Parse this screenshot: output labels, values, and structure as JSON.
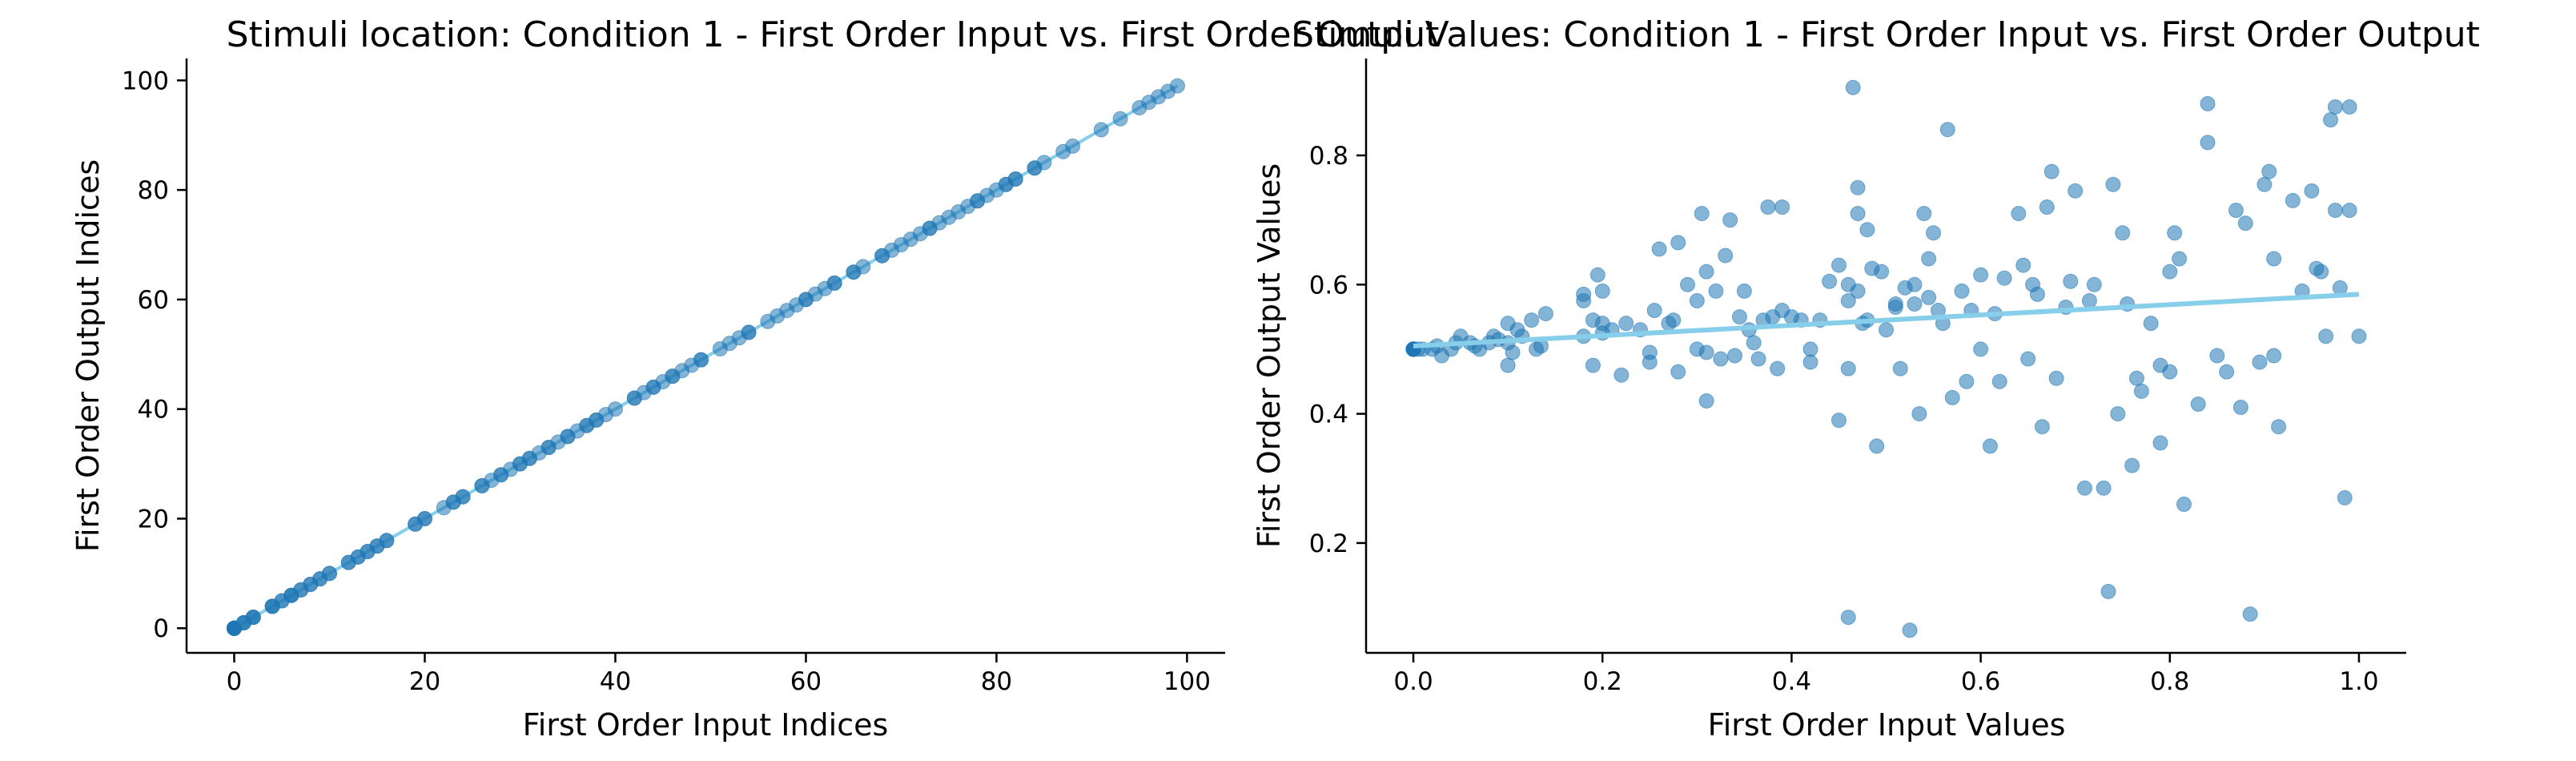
{
  "colors": {
    "point": "#1f77b4",
    "fit_line": "#87ceeb",
    "axis": "#000000"
  },
  "chart_data": [
    {
      "type": "scatter",
      "title": "Stimuli location: Condition 1 - First Order Input vs. First Order Output",
      "xlabel": "First Order Input Indices",
      "ylabel": "First Order Output Indices",
      "xlim": [
        -5,
        104
      ],
      "ylim": [
        -4.5,
        104
      ],
      "xticks": [
        "0",
        "20",
        "40",
        "60",
        "80",
        "100"
      ],
      "yticks": [
        "0",
        "20",
        "40",
        "60",
        "80",
        "100"
      ],
      "grid": false,
      "x": [
        0,
        0,
        0,
        0,
        0,
        0,
        0,
        0,
        0,
        0,
        0,
        0,
        1,
        1,
        1,
        2,
        2,
        2,
        4,
        4,
        4,
        5,
        5,
        6,
        6,
        6,
        7,
        7,
        8,
        8,
        9,
        9,
        10,
        10,
        12,
        12,
        13,
        13,
        14,
        14,
        15,
        15,
        16,
        16,
        19,
        19,
        20,
        20,
        22,
        23,
        23,
        24,
        24,
        26,
        26,
        27,
        28,
        28,
        29,
        30,
        30,
        31,
        31,
        32,
        33,
        33,
        34,
        35,
        35,
        36,
        37,
        37,
        38,
        38,
        39,
        40,
        42,
        42,
        43,
        44,
        44,
        45,
        46,
        46,
        47,
        48,
        49,
        49,
        51,
        52,
        53,
        54,
        54,
        56,
        57,
        58,
        59,
        60,
        60,
        61,
        62,
        63,
        63,
        65,
        65,
        66,
        68,
        68,
        69,
        70,
        71,
        72,
        73,
        73,
        74,
        75,
        76,
        77,
        78,
        78,
        79,
        80,
        81,
        81,
        82,
        82,
        84,
        84,
        85,
        87,
        88,
        91,
        93,
        95,
        96,
        97,
        98,
        99
      ],
      "y": [
        0,
        0,
        0,
        0,
        0,
        0,
        0,
        0,
        0,
        0,
        0,
        0,
        1,
        1,
        1,
        2,
        2,
        2,
        4,
        4,
        4,
        5,
        5,
        6,
        6,
        6,
        7,
        7,
        8,
        8,
        9,
        9,
        10,
        10,
        12,
        12,
        13,
        13,
        14,
        14,
        15,
        15,
        16,
        16,
        19,
        19,
        20,
        20,
        22,
        23,
        23,
        24,
        24,
        26,
        26,
        27,
        28,
        28,
        29,
        30,
        30,
        31,
        31,
        32,
        33,
        33,
        34,
        35,
        35,
        36,
        37,
        37,
        38,
        38,
        39,
        40,
        42,
        42,
        43,
        44,
        44,
        45,
        46,
        46,
        47,
        48,
        49,
        49,
        51,
        52,
        53,
        54,
        54,
        56,
        57,
        58,
        59,
        60,
        60,
        61,
        62,
        63,
        63,
        65,
        65,
        66,
        68,
        68,
        69,
        70,
        71,
        72,
        73,
        73,
        74,
        75,
        76,
        77,
        78,
        78,
        79,
        80,
        81,
        81,
        82,
        82,
        84,
        84,
        85,
        87,
        88,
        91,
        93,
        95,
        96,
        97,
        98,
        99
      ],
      "fit_line": {
        "x": [
          0,
          99
        ],
        "y": [
          0,
          99
        ]
      }
    },
    {
      "type": "scatter",
      "title": "Stimuli Values: Condition 1 - First Order Input vs. First Order Output",
      "xlabel": "First Order Input Values",
      "ylabel": "First Order Output Values",
      "xlim": [
        -0.05,
        1.05
      ],
      "ylim": [
        0.03,
        0.95
      ],
      "xticks": [
        "0.0",
        "0.2",
        "0.4",
        "0.6",
        "0.8",
        "1.0"
      ],
      "yticks": [
        "0.2",
        "0.4",
        "0.6",
        "0.8"
      ],
      "grid": false,
      "points": [
        [
          0,
          0.5
        ],
        [
          0,
          0.5
        ],
        [
          0,
          0.5
        ],
        [
          0,
          0.5
        ],
        [
          0,
          0.5
        ],
        [
          0,
          0.5
        ],
        [
          0,
          0.5
        ],
        [
          0,
          0.5
        ],
        [
          0.005,
          0.5
        ],
        [
          0.01,
          0.5
        ],
        [
          0.02,
          0.5
        ],
        [
          0.025,
          0.505
        ],
        [
          0.03,
          0.49
        ],
        [
          0.04,
          0.5
        ],
        [
          0.045,
          0.51
        ],
        [
          0.05,
          0.52
        ],
        [
          0.06,
          0.51
        ],
        [
          0.065,
          0.505
        ],
        [
          0.07,
          0.5
        ],
        [
          0.08,
          0.51
        ],
        [
          0.085,
          0.52
        ],
        [
          0.09,
          0.515
        ],
        [
          0.1,
          0.54
        ],
        [
          0.1,
          0.51
        ],
        [
          0.105,
          0.495
        ],
        [
          0.1,
          0.475
        ],
        [
          0.11,
          0.53
        ],
        [
          0.115,
          0.52
        ],
        [
          0.125,
          0.545
        ],
        [
          0.13,
          0.5
        ],
        [
          0.135,
          0.505
        ],
        [
          0.14,
          0.555
        ],
        [
          0.18,
          0.585
        ],
        [
          0.18,
          0.575
        ],
        [
          0.18,
          0.52
        ],
        [
          0.19,
          0.545
        ],
        [
          0.19,
          0.475
        ],
        [
          0.195,
          0.615
        ],
        [
          0.2,
          0.59
        ],
        [
          0.2,
          0.54
        ],
        [
          0.2,
          0.525
        ],
        [
          0.21,
          0.53
        ],
        [
          0.22,
          0.46
        ],
        [
          0.225,
          0.54
        ],
        [
          0.24,
          0.53
        ],
        [
          0.25,
          0.495
        ],
        [
          0.25,
          0.48
        ],
        [
          0.255,
          0.56
        ],
        [
          0.26,
          0.655
        ],
        [
          0.27,
          0.54
        ],
        [
          0.275,
          0.545
        ],
        [
          0.28,
          0.665
        ],
        [
          0.28,
          0.465
        ],
        [
          0.29,
          0.6
        ],
        [
          0.3,
          0.575
        ],
        [
          0.3,
          0.5
        ],
        [
          0.305,
          0.71
        ],
        [
          0.31,
          0.62
        ],
        [
          0.31,
          0.495
        ],
        [
          0.31,
          0.42
        ],
        [
          0.32,
          0.59
        ],
        [
          0.325,
          0.485
        ],
        [
          0.33,
          0.645
        ],
        [
          0.335,
          0.7
        ],
        [
          0.34,
          0.49
        ],
        [
          0.345,
          0.55
        ],
        [
          0.35,
          0.59
        ],
        [
          0.355,
          0.53
        ],
        [
          0.36,
          0.51
        ],
        [
          0.365,
          0.485
        ],
        [
          0.37,
          0.545
        ],
        [
          0.375,
          0.72
        ],
        [
          0.38,
          0.55
        ],
        [
          0.385,
          0.47
        ],
        [
          0.39,
          0.56
        ],
        [
          0.39,
          0.72
        ],
        [
          0.4,
          0.55
        ],
        [
          0.41,
          0.545
        ],
        [
          0.42,
          0.5
        ],
        [
          0.42,
          0.48
        ],
        [
          0.43,
          0.545
        ],
        [
          0.44,
          0.605
        ],
        [
          0.45,
          0.63
        ],
        [
          0.45,
          0.39
        ],
        [
          0.46,
          0.6
        ],
        [
          0.46,
          0.575
        ],
        [
          0.46,
          0.47
        ],
        [
          0.47,
          0.59
        ],
        [
          0.47,
          0.75
        ],
        [
          0.47,
          0.71
        ],
        [
          0.475,
          0.54
        ],
        [
          0.48,
          0.685
        ],
        [
          0.48,
          0.545
        ],
        [
          0.485,
          0.625
        ],
        [
          0.49,
          0.35
        ],
        [
          0.495,
          0.62
        ],
        [
          0.5,
          0.53
        ],
        [
          0.51,
          0.565
        ],
        [
          0.51,
          0.57
        ],
        [
          0.515,
          0.47
        ],
        [
          0.52,
          0.595
        ],
        [
          0.53,
          0.6
        ],
        [
          0.53,
          0.57
        ],
        [
          0.535,
          0.4
        ],
        [
          0.54,
          0.71
        ],
        [
          0.545,
          0.58
        ],
        [
          0.545,
          0.64
        ],
        [
          0.55,
          0.68
        ],
        [
          0.555,
          0.56
        ],
        [
          0.56,
          0.54
        ],
        [
          0.565,
          0.84
        ],
        [
          0.57,
          0.425
        ],
        [
          0.58,
          0.59
        ],
        [
          0.585,
          0.45
        ],
        [
          0.59,
          0.56
        ],
        [
          0.6,
          0.5
        ],
        [
          0.6,
          0.615
        ],
        [
          0.61,
          0.35
        ],
        [
          0.615,
          0.555
        ],
        [
          0.62,
          0.45
        ],
        [
          0.625,
          0.61
        ],
        [
          0.64,
          0.71
        ],
        [
          0.645,
          0.63
        ],
        [
          0.65,
          0.485
        ],
        [
          0.655,
          0.6
        ],
        [
          0.66,
          0.585
        ],
        [
          0.665,
          0.38
        ],
        [
          0.67,
          0.72
        ],
        [
          0.675,
          0.775
        ],
        [
          0.68,
          0.455
        ],
        [
          0.69,
          0.565
        ],
        [
          0.695,
          0.605
        ],
        [
          0.7,
          0.745
        ],
        [
          0.71,
          0.285
        ],
        [
          0.715,
          0.575
        ],
        [
          0.72,
          0.6
        ],
        [
          0.73,
          0.285
        ],
        [
          0.735,
          0.125
        ],
        [
          0.74,
          0.755
        ],
        [
          0.745,
          0.4
        ],
        [
          0.75,
          0.68
        ],
        [
          0.755,
          0.57
        ],
        [
          0.76,
          0.32
        ],
        [
          0.765,
          0.455
        ],
        [
          0.77,
          0.435
        ],
        [
          0.78,
          0.54
        ],
        [
          0.79,
          0.475
        ],
        [
          0.79,
          0.355
        ],
        [
          0.8,
          0.465
        ],
        [
          0.8,
          0.62
        ],
        [
          0.805,
          0.68
        ],
        [
          0.81,
          0.64
        ],
        [
          0.815,
          0.26
        ],
        [
          0.83,
          0.415
        ],
        [
          0.84,
          0.88
        ],
        [
          0.84,
          0.82
        ],
        [
          0.85,
          0.49
        ],
        [
          0.86,
          0.465
        ],
        [
          0.87,
          0.715
        ],
        [
          0.875,
          0.41
        ],
        [
          0.88,
          0.695
        ],
        [
          0.885,
          0.09
        ],
        [
          0.895,
          0.48
        ],
        [
          0.9,
          0.755
        ],
        [
          0.905,
          0.775
        ],
        [
          0.91,
          0.64
        ],
        [
          0.91,
          0.49
        ],
        [
          0.915,
          0.38
        ],
        [
          0.93,
          0.73
        ],
        [
          0.94,
          0.59
        ],
        [
          0.95,
          0.745
        ],
        [
          0.955,
          0.625
        ],
        [
          0.96,
          0.62
        ],
        [
          0.965,
          0.52
        ],
        [
          0.97,
          0.855
        ],
        [
          0.975,
          0.875
        ],
        [
          0.975,
          0.715
        ],
        [
          0.98,
          0.595
        ],
        [
          0.985,
          0.27
        ],
        [
          0.99,
          0.875
        ],
        [
          0.99,
          0.715
        ],
        [
          1.0,
          0.52
        ],
        [
          0.46,
          0.085
        ],
        [
          0.525,
          0.065
        ],
        [
          0.465,
          0.905
        ]
      ],
      "fit_line": {
        "x": [
          0,
          1.0
        ],
        "y": [
          0.505,
          0.585
        ]
      }
    }
  ]
}
